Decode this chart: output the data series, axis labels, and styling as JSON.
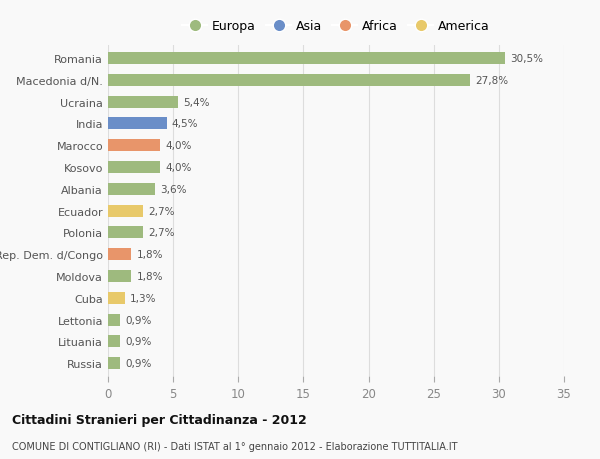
{
  "countries": [
    "Russia",
    "Lituania",
    "Lettonia",
    "Cuba",
    "Moldova",
    "Rep. Dem. d/Congo",
    "Polonia",
    "Ecuador",
    "Albania",
    "Kosovo",
    "Marocco",
    "India",
    "Ucraina",
    "Macedonia d/N.",
    "Romania"
  ],
  "values": [
    0.9,
    0.9,
    0.9,
    1.3,
    1.8,
    1.8,
    2.7,
    2.7,
    3.6,
    4.0,
    4.0,
    4.5,
    5.4,
    27.8,
    30.5
  ],
  "labels": [
    "0,9%",
    "0,9%",
    "0,9%",
    "1,3%",
    "1,8%",
    "1,8%",
    "2,7%",
    "2,7%",
    "3,6%",
    "4,0%",
    "4,0%",
    "4,5%",
    "5,4%",
    "27,8%",
    "30,5%"
  ],
  "colors": [
    "#9eba7e",
    "#9eba7e",
    "#9eba7e",
    "#e8c96a",
    "#9eba7e",
    "#e8956a",
    "#9eba7e",
    "#e8c96a",
    "#9eba7e",
    "#9eba7e",
    "#e8956a",
    "#6a8ec8",
    "#9eba7e",
    "#9eba7e",
    "#9eba7e"
  ],
  "legend": [
    {
      "label": "Europa",
      "color": "#9eba7e"
    },
    {
      "label": "Asia",
      "color": "#6a8ec8"
    },
    {
      "label": "Africa",
      "color": "#e8956a"
    },
    {
      "label": "America",
      "color": "#e8c96a"
    }
  ],
  "xlim": [
    0,
    35
  ],
  "xticks": [
    0,
    5,
    10,
    15,
    20,
    25,
    30,
    35
  ],
  "title": "Cittadini Stranieri per Cittadinanza - 2012",
  "subtitle": "COMUNE DI CONTIGLIANO (RI) - Dati ISTAT al 1° gennaio 2012 - Elaborazione TUTTITALIA.IT",
  "bg_color": "#f9f9f9",
  "grid_color": "#dddddd",
  "bar_height": 0.55
}
